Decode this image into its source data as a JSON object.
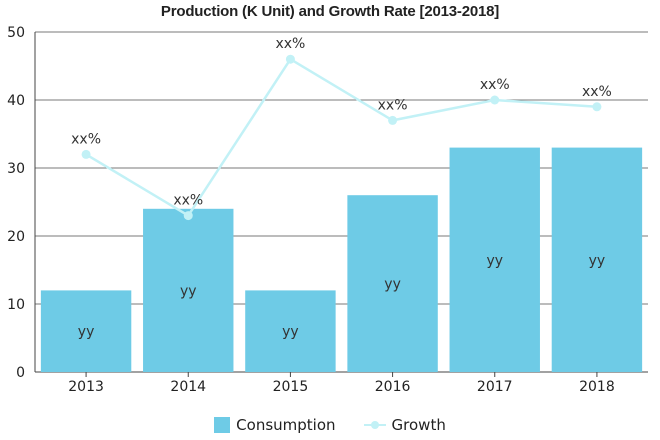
{
  "chart_data": {
    "type": "bar",
    "title": "Production (K Unit) and Growth Rate [2013-2018]",
    "categories": [
      "2013",
      "2014",
      "2015",
      "2016",
      "2017",
      "2018"
    ],
    "ylim": [
      0,
      50
    ],
    "yticks": [
      0,
      10,
      20,
      30,
      40,
      50
    ],
    "grid": true,
    "legend_position": "bottom",
    "series": [
      {
        "name": "Consumption",
        "type": "bar",
        "values": [
          12,
          24,
          12,
          26,
          33,
          33
        ],
        "labels": [
          "yy",
          "yy",
          "yy",
          "yy",
          "yy",
          "yy"
        ],
        "color": "#6ecbe6"
      },
      {
        "name": "Growth",
        "type": "line",
        "values": [
          32,
          23,
          46,
          37,
          40,
          39
        ],
        "labels": [
          "xx%",
          "xx%",
          "xx%",
          "xx%",
          "xx%",
          "xx%"
        ],
        "color": "#c2f1f6"
      }
    ]
  }
}
